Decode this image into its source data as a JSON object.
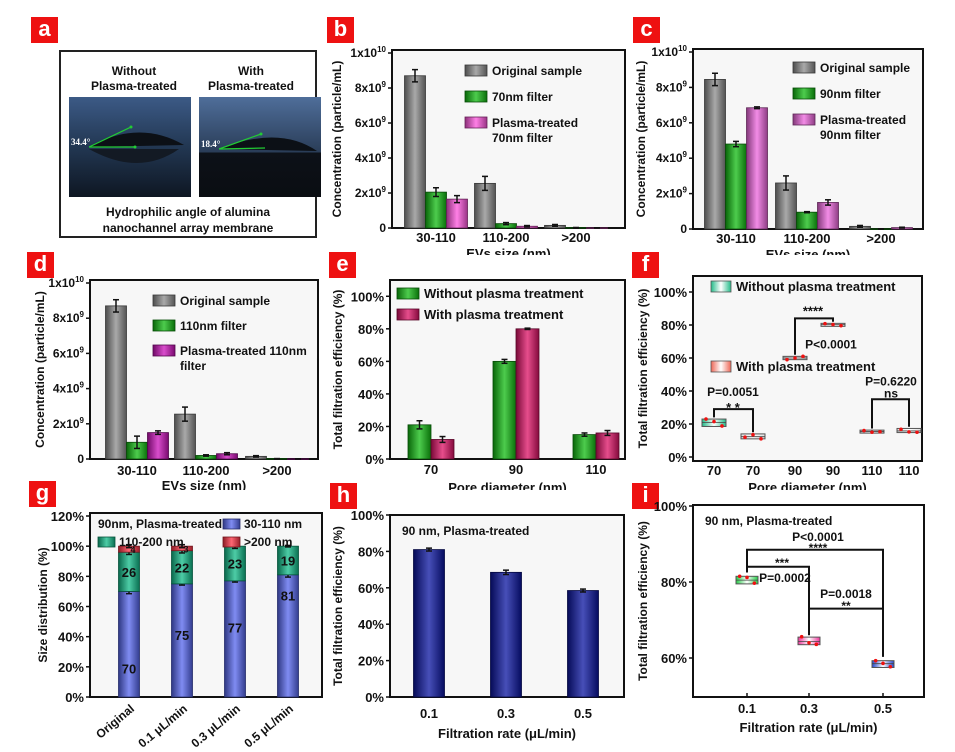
{
  "panel_labels": [
    "a",
    "b",
    "c",
    "d",
    "e",
    "f",
    "g",
    "h",
    "i"
  ],
  "panel_a": {
    "left_title": "Without Plasma-treated",
    "left_title_lines": [
      "Without",
      "Plasma-treated"
    ],
    "right_title_lines": [
      "With",
      "Plasma-treated"
    ],
    "left_angle": "34.4°",
    "right_angle": "18.4°",
    "caption_lines": [
      "Hydrophilic angle of alumina",
      "nanochannel array membrane"
    ]
  },
  "chart_data": [
    {
      "id": "b",
      "type": "bar",
      "title": "",
      "xlabel": "EVs  size (nm)",
      "ylabel": "Concentration (particle/mL)",
      "categories": [
        "30-110",
        "110-200",
        ">200"
      ],
      "ylim": [
        0,
        10000000000
      ],
      "yticks": [
        0,
        2000000000,
        4000000000,
        6000000000,
        8000000000,
        10000000000
      ],
      "ytick_labels": [
        "0",
        "2x10^9",
        "4x10^9",
        "6x10^9",
        "8x10^9",
        "1x10^10"
      ],
      "legend": "top-right",
      "series": [
        {
          "name": "Original sample",
          "color": "#8c8c8c",
          "values": [
            8700000000,
            2550000000,
            150000000
          ],
          "errors": [
            350000000,
            400000000,
            50000000
          ]
        },
        {
          "name": "70nm filter",
          "color": "#11bb11",
          "values": [
            2050000000,
            250000000,
            20000000
          ],
          "errors": [
            250000000,
            60000000,
            10000000
          ]
        },
        {
          "name": "Plasma-treated 70nm filter",
          "color": "#ff55dd",
          "values": [
            1650000000,
            100000000,
            10000000
          ],
          "errors": [
            200000000,
            40000000,
            5000000
          ]
        }
      ]
    },
    {
      "id": "c",
      "type": "bar",
      "title": "",
      "xlabel": "EVs   size (nm)",
      "ylabel": "Concentration (particle/mL)",
      "categories": [
        "30-110",
        "110-200",
        ">200"
      ],
      "ylim": [
        0,
        10000000000
      ],
      "yticks": [
        0,
        2000000000,
        4000000000,
        6000000000,
        8000000000,
        10000000000
      ],
      "ytick_labels": [
        "0",
        "2x10^9",
        "4x10^9",
        "6x10^9",
        "8x10^9",
        "1x10^10"
      ],
      "legend": "top-right",
      "series": [
        {
          "name": "Original sample",
          "color": "#8c8c8c",
          "values": [
            8450000000,
            2600000000,
            150000000
          ],
          "errors": [
            350000000,
            400000000,
            50000000
          ]
        },
        {
          "name": "90nm filter",
          "color": "#11bb11",
          "values": [
            4800000000,
            950000000,
            10000000
          ],
          "errors": [
            150000000,
            30000000,
            5000000
          ]
        },
        {
          "name": "Plasma-treated 90nm filter",
          "color": "#ee66dd",
          "values": [
            6850000000,
            1500000000,
            80000000
          ],
          "errors": [
            50000000,
            150000000,
            20000000
          ]
        }
      ]
    },
    {
      "id": "d",
      "type": "bar",
      "title": "",
      "xlabel": "EVs  size (nm)",
      "ylabel": "Concentration (particle/mL)",
      "categories": [
        "30-110",
        "110-200",
        ">200"
      ],
      "ylim": [
        0,
        10000000000
      ],
      "yticks": [
        0,
        2000000000,
        4000000000,
        6000000000,
        8000000000,
        10000000000
      ],
      "ytick_labels": [
        "0",
        "2x10^9",
        "4x10^9",
        "6x10^9",
        "8x10^9",
        "1x10^10"
      ],
      "legend": "top-right",
      "series": [
        {
          "name": "Original sample",
          "color": "#8c8c8c",
          "values": [
            8700000000,
            2550000000,
            150000000
          ],
          "errors": [
            350000000,
            400000000,
            40000000
          ]
        },
        {
          "name": "110nm filter",
          "color": "#11bb11",
          "values": [
            950000000,
            200000000,
            20000000
          ],
          "errors": [
            350000000,
            40000000,
            5000000
          ]
        },
        {
          "name": "Plasma-treated 110nm filter",
          "color": "#cc11bb",
          "values": [
            1500000000,
            300000000,
            10000000
          ],
          "errors": [
            100000000,
            60000000,
            5000000
          ]
        }
      ]
    },
    {
      "id": "e",
      "type": "bar",
      "title": "",
      "xlabel": "Pore diameter (nm)",
      "ylabel": "Total filtration efficiency (%)",
      "categories": [
        "70",
        "90",
        "110"
      ],
      "ylim": [
        0,
        110
      ],
      "yticks": [
        0,
        20,
        40,
        60,
        80,
        100
      ],
      "ytick_labels": [
        "0%",
        "20%",
        "40%",
        "60%",
        "80%",
        "100%"
      ],
      "legend": "top-left",
      "series": [
        {
          "name": "Without plasma treatment",
          "color": "#11bb11",
          "values": [
            21,
            60,
            15
          ],
          "errors": [
            2.5,
            1.2,
            1
          ]
        },
        {
          "name": "With plasma treatment",
          "color": "#dd1166",
          "values": [
            12,
            80,
            16
          ],
          "errors": [
            1.8,
            0.4,
            1.5
          ]
        }
      ]
    },
    {
      "id": "f",
      "type": "box",
      "title": "",
      "xlabel": "Pore diameter (nm)",
      "ylabel": "Total filtration efficiency (%)",
      "categories": [
        "70",
        "70",
        "90",
        "90",
        "110",
        "110"
      ],
      "ylim": [
        0,
        100
      ],
      "yticks": [
        0,
        20,
        40,
        60,
        80,
        100
      ],
      "ytick_labels": [
        "0%",
        "20%",
        "40%",
        "60%",
        "80%",
        "100%"
      ],
      "legend": "top-left",
      "legend_entries": [
        {
          "name": "Without plasma treatment",
          "color": "#22bb88"
        },
        {
          "name": "With plasma treatment",
          "color": "#ee6655"
        }
      ],
      "boxes": [
        {
          "group": "Without plasma treatment",
          "low": 18.5,
          "high": 23,
          "median": 21,
          "points": [
            23,
            21.5,
            18.8
          ]
        },
        {
          "group": "With plasma treatment",
          "low": 11,
          "high": 14,
          "median": 12.3,
          "points": [
            12,
            13.5,
            11
          ]
        },
        {
          "group": "Without plasma treatment",
          "low": 59,
          "high": 61,
          "median": 60,
          "points": [
            59,
            60,
            61
          ]
        },
        {
          "group": "With plasma treatment",
          "low": 79.5,
          "high": 81,
          "median": 80.2,
          "points": [
            80.8,
            80.3,
            79.6
          ]
        },
        {
          "group": "Without plasma treatment",
          "low": 14.8,
          "high": 16.3,
          "median": 15.5,
          "points": [
            16,
            15,
            15.3
          ]
        },
        {
          "group": "With plasma treatment",
          "low": 14.8,
          "high": 17.3,
          "median": 15.8,
          "points": [
            16.8,
            15.2,
            15
          ]
        }
      ],
      "annotations": [
        {
          "pair": [
            0,
            1
          ],
          "p_text": "P=0.0051",
          "stars": "* *",
          "bracket_y": 29
        },
        {
          "pair": [
            2,
            3
          ],
          "p_text": "P<0.0001",
          "stars": "****",
          "bracket_y": 84
        },
        {
          "pair": [
            4,
            5
          ],
          "p_text": "P=0.6220",
          "stars": "ns",
          "bracket_y": 35
        }
      ]
    },
    {
      "id": "g",
      "type": "stacked-bar",
      "title": "90nm, Plasma-treated",
      "xlabel": "",
      "ylabel": "Size distribution (%)",
      "categories": [
        "Original",
        "0.1 μL/min",
        "0.3 μL/min",
        "0.5 μL/min"
      ],
      "ylim": [
        0,
        120
      ],
      "yticks": [
        0,
        20,
        40,
        60,
        80,
        100,
        120
      ],
      "ytick_labels": [
        "0%",
        "20%",
        "40%",
        "60%",
        "80%",
        "100%",
        "120%"
      ],
      "legend": "top",
      "series": [
        {
          "name": "30-110 nm",
          "color": "#5566ee",
          "values": [
            70,
            75,
            77,
            81
          ],
          "labels": [
            "70",
            "75",
            "77",
            "81"
          ],
          "errors": [
            1.5,
            0.8,
            0.8,
            1.5
          ]
        },
        {
          "name": "110-200 nm",
          "color": "#11bb88",
          "values": [
            26,
            22,
            23,
            19
          ],
          "labels": [
            "26",
            "22",
            "23",
            "19"
          ],
          "errors": [
            1.5,
            1.5,
            1.5,
            0.5
          ]
        },
        {
          "name": ">200 nm",
          "color": "#ff3344",
          "values": [
            4,
            3,
            0,
            0
          ],
          "labels": [
            "4",
            "3",
            "",
            ""
          ],
          "errors": [
            1,
            1,
            0,
            0
          ]
        }
      ]
    },
    {
      "id": "h",
      "type": "bar",
      "title": "90 nm, Plasma-treated",
      "xlabel": "Filtration rate (μL/min)",
      "ylabel": "Total filtration efficiency (%)",
      "categories": [
        "0.1",
        "0.3",
        "0.5"
      ],
      "ylim": [
        0,
        100
      ],
      "yticks": [
        0,
        20,
        40,
        60,
        80,
        100
      ],
      "ytick_labels": [
        "0%",
        "20%",
        "40%",
        "60%",
        "80%",
        "100%"
      ],
      "legend": "none",
      "series": [
        {
          "name": "90 nm, Plasma-treated",
          "color": "#0a14a0",
          "values": [
            81,
            68.5,
            58.5
          ],
          "errors": [
            0.8,
            1.2,
            0.8
          ]
        }
      ]
    },
    {
      "id": "i",
      "type": "box",
      "title": "90 nm, Plasma-treated",
      "xlabel": "Filtration rate (μL/min)",
      "ylabel": "Total filtration efficiency (%)",
      "categories": [
        "0.1",
        "0.3",
        "0.5"
      ],
      "ylim": [
        50,
        100
      ],
      "yticks": [
        60,
        80,
        100
      ],
      "ytick_labels": [
        "60%",
        "80%",
        "100%"
      ],
      "legend": "none",
      "boxes": [
        {
          "color": "#22cc44",
          "low": 79.5,
          "high": 81.5,
          "median": 80.5,
          "points": [
            81.5,
            81.2,
            79.7
          ]
        },
        {
          "color": "#ee3399",
          "low": 63.5,
          "high": 65.5,
          "median": 64.3,
          "points": [
            65.6,
            64,
            63.6
          ]
        },
        {
          "color": "#2244cc",
          "low": 57.5,
          "high": 59.3,
          "median": 58.5,
          "points": [
            59.3,
            58.6,
            57.7
          ]
        }
      ],
      "annotations": [
        {
          "pair": [
            0,
            2
          ],
          "p_text": "P<0.0001",
          "stars": "****",
          "bracket_y": 88.5
        },
        {
          "pair": [
            0,
            1
          ],
          "p_text": "P=0.0002",
          "stars": "***",
          "bracket_y": 84
        },
        {
          "pair": [
            1,
            2
          ],
          "p_text": "P=0.0018",
          "stars": "**",
          "bracket_y": 73
        }
      ]
    }
  ]
}
